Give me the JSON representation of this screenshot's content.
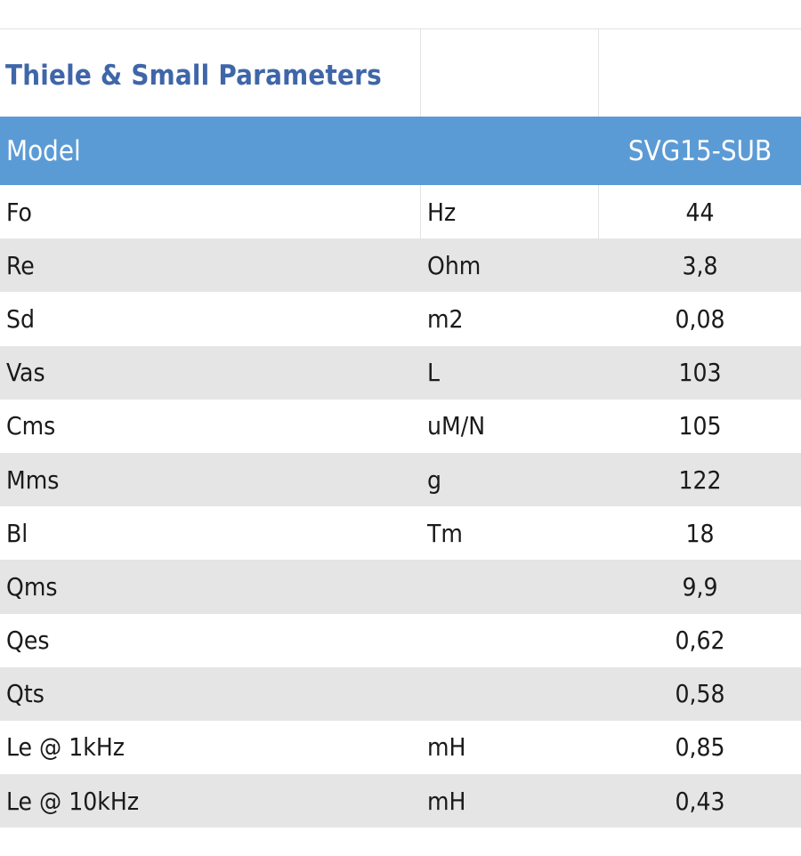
{
  "title": "Thiele & Small Parameters",
  "header": {
    "label": "Model",
    "unit": "",
    "model": "SVG15-SUB"
  },
  "rows": [
    {
      "param": "Fo",
      "unit": "Hz",
      "value": "44"
    },
    {
      "param": "Re",
      "unit": "Ohm",
      "value": "3,8"
    },
    {
      "param": "Sd",
      "unit": "m2",
      "value": "0,08"
    },
    {
      "param": "Vas",
      "unit": "L",
      "value": "103"
    },
    {
      "param": "Cms",
      "unit": "uM/N",
      "value": "105"
    },
    {
      "param": "Mms",
      "unit": "g",
      "value": "122"
    },
    {
      "param": "Bl",
      "unit": "Tm",
      "value": "18"
    },
    {
      "param": "Qms",
      "unit": "",
      "value": "9,9"
    },
    {
      "param": "Qes",
      "unit": "",
      "value": "0,62"
    },
    {
      "param": "Qts",
      "unit": "",
      "value": "0,58"
    },
    {
      "param": "Le @ 1kHz",
      "unit": "mH",
      "value": "0,85"
    },
    {
      "param": "Le @ 10kHz",
      "unit": "mH",
      "value": "0,43"
    }
  ],
  "colors": {
    "title": "#3f66a8",
    "header_bg": "#5b9bd5",
    "stripe": "#e6e5e6"
  }
}
